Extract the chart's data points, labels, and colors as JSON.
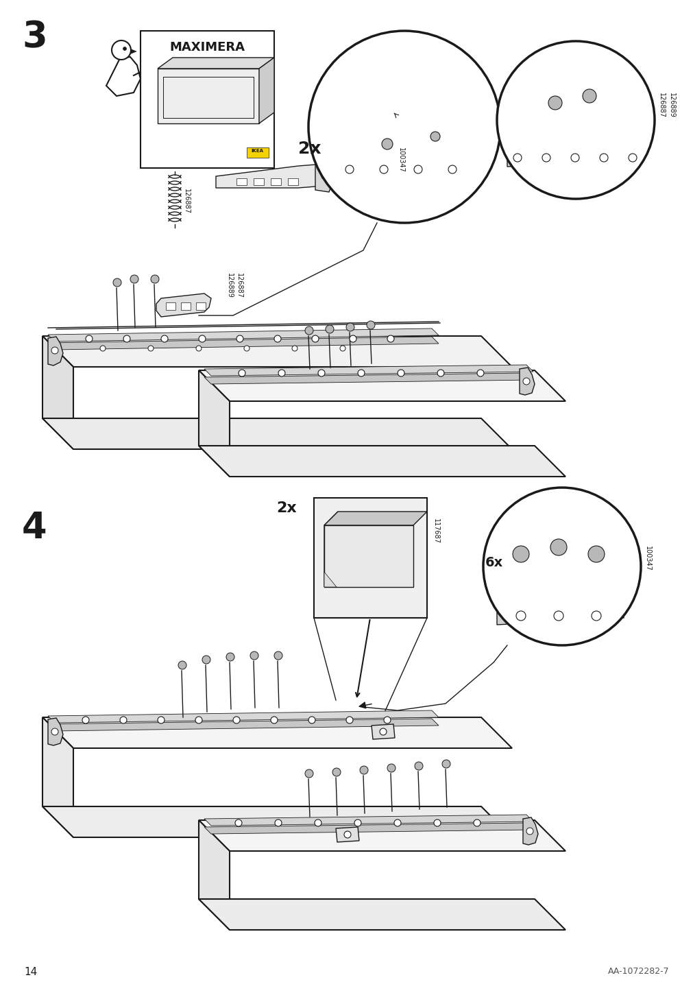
{
  "page_number": "14",
  "doc_id": "AA-1072282-7",
  "background_color": "#ffffff",
  "line_color": "#1a1a1a",
  "step3_num": "3",
  "step4_num": "4",
  "maximera_label": "MAXIMERA",
  "label_126887": "126887",
  "label_126889": "126889",
  "label_100347": "100347",
  "label_117687": "117687",
  "label_2x_s3": "2x",
  "label_2x_s4": "2x",
  "label_6x": "6x"
}
